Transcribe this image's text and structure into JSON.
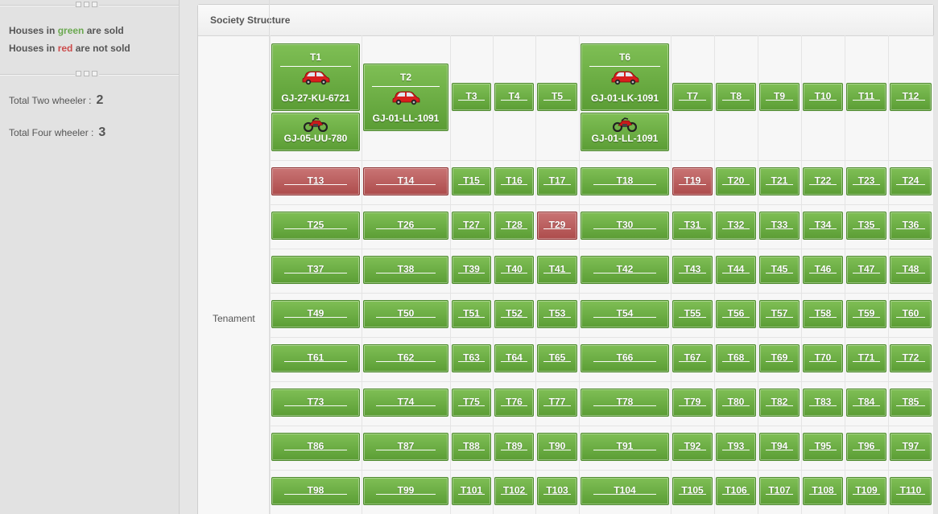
{
  "sidebar": {
    "legend": {
      "sold_prefix": "Houses in",
      "sold_word": "green",
      "sold_suffix": "are sold",
      "unsold_prefix": "Houses in",
      "unsold_word": "red",
      "unsold_suffix": "are not sold"
    },
    "stats": {
      "two_wheeler_label": "Total Two wheeler :",
      "two_wheeler_value": "2",
      "four_wheeler_label": "Total Four wheeler :",
      "four_wheeler_value": "3"
    }
  },
  "panel": {
    "title": "Society Structure",
    "row_label": "Tenament"
  },
  "colors": {
    "sold": "#6aa84f",
    "unsold": "#b85555"
  },
  "vehicles": {
    "T1": {
      "car_plate": "GJ-27-KU-6721",
      "bike_plate": "GJ-05-UU-780"
    },
    "T2": {
      "car_plate": "GJ-01-LL-1091"
    },
    "T6": {
      "car_plate": "GJ-01-LK-1091",
      "bike_plate": "GJ-01-LL-1091"
    }
  },
  "rows": [
    [
      "T1",
      "T2",
      "T3",
      "T4",
      "T5",
      "T6",
      "T7",
      "T8",
      "T9",
      "T10",
      "T11",
      "T12"
    ],
    [
      "T13",
      "T14",
      "T15",
      "T16",
      "T17",
      "T18",
      "T19",
      "T20",
      "T21",
      "T22",
      "T23",
      "T24"
    ],
    [
      "T25",
      "T26",
      "T27",
      "T28",
      "T29",
      "T30",
      "T31",
      "T32",
      "T33",
      "T34",
      "T35",
      "T36"
    ],
    [
      "T37",
      "T38",
      "T39",
      "T40",
      "T41",
      "T42",
      "T43",
      "T44",
      "T45",
      "T46",
      "T47",
      "T48"
    ],
    [
      "T49",
      "T50",
      "T51",
      "T52",
      "T53",
      "T54",
      "T55",
      "T56",
      "T57",
      "T58",
      "T59",
      "T60"
    ],
    [
      "T61",
      "T62",
      "T63",
      "T64",
      "T65",
      "T66",
      "T67",
      "T68",
      "T69",
      "T70",
      "T71",
      "T72"
    ],
    [
      "T73",
      "T74",
      "T75",
      "T76",
      "T77",
      "T78",
      "T79",
      "T80",
      "T82",
      "T83",
      "T84",
      "T85"
    ],
    [
      "T86",
      "T87",
      "T88",
      "T89",
      "T90",
      "T91",
      "T92",
      "T93",
      "T94",
      "T95",
      "T96",
      "T97"
    ],
    [
      "T98",
      "T99",
      "T101",
      "T102",
      "T103",
      "T104",
      "T105",
      "T106",
      "T107",
      "T108",
      "T109",
      "T110"
    ]
  ],
  "unsold": [
    "T13",
    "T14",
    "T19",
    "T29"
  ],
  "icons": {
    "car": "car-icon",
    "bike": "motorbike-icon"
  }
}
